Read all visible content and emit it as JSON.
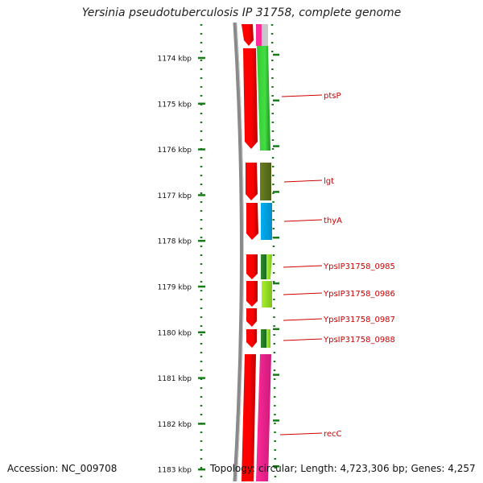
{
  "title": "Yersinia pseudotuberculosis IP 31758, complete genome",
  "footer": {
    "accession": "Accession: NC_009708",
    "topology": "Topology: circular; Length: 4,723,306 bp; Genes: 4,257"
  },
  "colors": {
    "backbone": "#8a8a8a",
    "cds_strand": "#ff0000",
    "ticks": "#1a7a1a",
    "label": "#cc0000"
  },
  "ruler": {
    "unit": "kbp",
    "ticks": [
      "1174 kbp",
      "1175 kbp",
      "1176 kbp",
      "1177 kbp",
      "1178 kbp",
      "1179 kbp",
      "1180 kbp",
      "1181 kbp",
      "1182 kbp",
      "1183 kbp"
    ]
  },
  "genes": [
    {
      "label": "ptsP",
      "color": "#33cc33"
    },
    {
      "label": "lgt",
      "color": "#6b7f22"
    },
    {
      "label": "thyA",
      "color": "#00b0f0"
    },
    {
      "label": "YpsIP31758_0985",
      "color": "#2e8b2e"
    },
    {
      "label": "YpsIP31758_0986",
      "color": "#a6f02e"
    },
    {
      "label": "YpsIP31758_0987",
      "color": "#b8f040"
    },
    {
      "label": "YpsIP31758_0988",
      "color": "#2e8b2e"
    },
    {
      "label": "recC",
      "color": "#ff2a9a"
    }
  ]
}
